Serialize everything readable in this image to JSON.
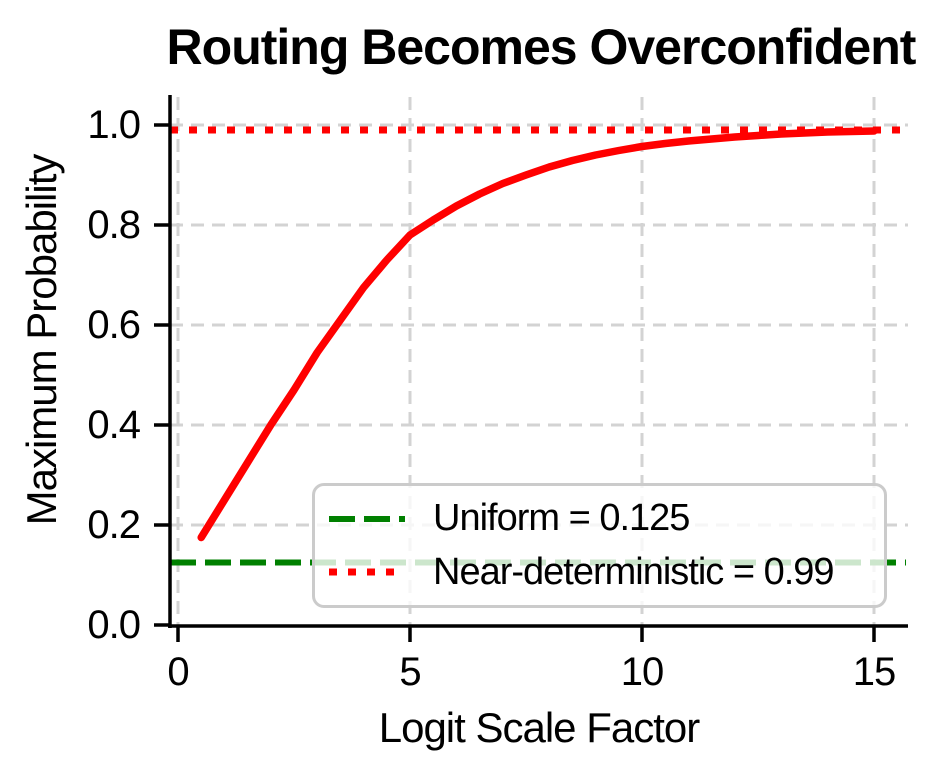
{
  "chart_data": {
    "type": "line",
    "title": "Routing Becomes Overconfident",
    "xlabel": "Logit Scale Factor",
    "ylabel": "Maximum Probability",
    "xlim": [
      -0.2,
      15.75
    ],
    "ylim": [
      0.0,
      1.056
    ],
    "grid": true,
    "x_ticks": [
      0,
      5,
      10,
      15
    ],
    "x_tick_labels": [
      "0",
      "5",
      "10",
      "15"
    ],
    "y_ticks": [
      0.0,
      0.2,
      0.4,
      0.6,
      0.8,
      1.0
    ],
    "y_tick_labels": [
      "0.0",
      "0.2",
      "0.4",
      "0.6",
      "0.8",
      "1.0"
    ],
    "series": [
      {
        "name": "maximum-probability-curve",
        "color": "#ff0000",
        "style": "solid",
        "x": [
          0.5,
          1.0,
          1.5,
          2.0,
          2.5,
          3.0,
          3.5,
          4.0,
          4.5,
          5.0,
          5.5,
          6.0,
          6.5,
          7.0,
          7.5,
          8.0,
          8.5,
          9.0,
          9.5,
          10.0,
          10.5,
          11.0,
          11.5,
          12.0,
          12.5,
          13.0,
          13.5,
          14.0,
          14.5,
          15.0
        ],
        "y": [
          0.175,
          0.25,
          0.325,
          0.4,
          0.47,
          0.545,
          0.61,
          0.675,
          0.73,
          0.78,
          0.81,
          0.838,
          0.862,
          0.883,
          0.9,
          0.916,
          0.929,
          0.94,
          0.949,
          0.957,
          0.963,
          0.968,
          0.972,
          0.976,
          0.979,
          0.982,
          0.984,
          0.986,
          0.987,
          0.988
        ]
      }
    ],
    "reference_lines": [
      {
        "name": "uniform",
        "label": "Uniform = 0.125",
        "value": 0.125,
        "color": "#008000",
        "style": "dashed"
      },
      {
        "name": "near-deterministic",
        "label": "Near-deterministic = 0.99",
        "value": 0.99,
        "color": "#ff0000",
        "style": "dotted"
      }
    ],
    "legend": {
      "position": "lower right"
    },
    "colors": {
      "curve_red": "#ff0000",
      "reference_green": "#008000",
      "grid_gray": "#d3d3d3",
      "axis_black": "#000000",
      "legend_border_gray": "#cbcbcb"
    }
  }
}
